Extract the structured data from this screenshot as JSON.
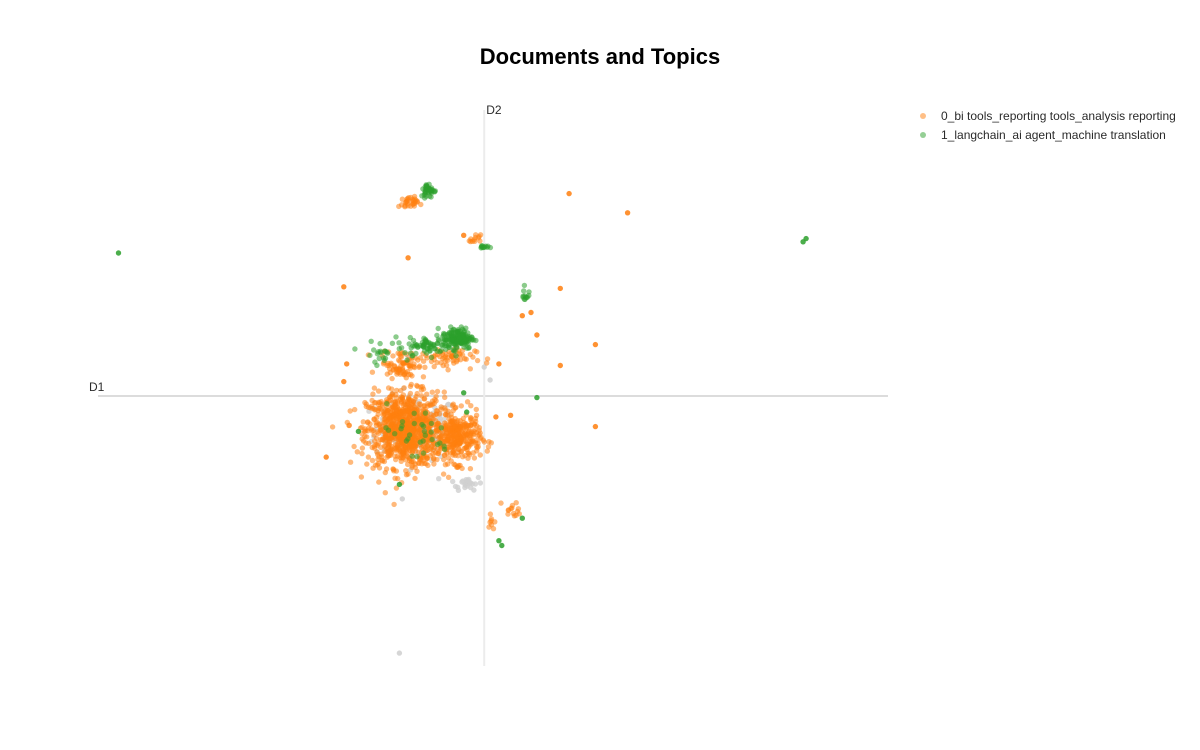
{
  "chart_data": {
    "type": "scatter",
    "title": "Documents and Topics",
    "xlabel": "D1",
    "ylabel": "D2",
    "xlim": [
      -6.6,
      6.9
    ],
    "ylim": [
      -8.4,
      8.9
    ],
    "grid": false,
    "legend_position": "top-right",
    "series": [
      {
        "name": "0_bi tools_reporting tools_analysis reporting",
        "color": "#ff7f0e",
        "clusters": [
          {
            "center": [
              -1.35,
              -1.05
            ],
            "spread": [
              0.6,
              1.05
            ],
            "count": 900
          },
          {
            "center": [
              -0.45,
              -1.3
            ],
            "spread": [
              0.35,
              0.7
            ],
            "count": 300
          },
          {
            "center": [
              -1.4,
              1.0
            ],
            "spread": [
              0.35,
              0.4
            ],
            "count": 80
          },
          {
            "center": [
              -0.65,
              1.2
            ],
            "spread": [
              0.45,
              0.3
            ],
            "count": 60
          },
          {
            "center": [
              -1.3,
              6.0
            ],
            "spread": [
              0.15,
              0.18
            ],
            "count": 30
          },
          {
            "center": [
              -0.15,
              4.85
            ],
            "spread": [
              0.08,
              0.15
            ],
            "count": 12
          },
          {
            "center": [
              0.5,
              -3.55
            ],
            "spread": [
              0.15,
              0.25
            ],
            "count": 14
          },
          {
            "center": [
              0.1,
              -3.9
            ],
            "spread": [
              0.07,
              0.3
            ],
            "count": 8
          }
        ],
        "points": [
          [
            1.45,
            6.3
          ],
          [
            2.45,
            5.7
          ],
          [
            1.3,
            3.35
          ],
          [
            0.9,
            1.9
          ],
          [
            1.9,
            1.6
          ],
          [
            1.3,
            0.95
          ],
          [
            1.9,
            -0.95
          ],
          [
            -2.7,
            -1.9
          ],
          [
            -2.4,
            3.4
          ],
          [
            -2.35,
            1.0
          ],
          [
            -2.4,
            0.45
          ],
          [
            -1.3,
            4.3
          ],
          [
            -0.35,
            5.0
          ],
          [
            0.2,
            -0.65
          ],
          [
            0.25,
            1.0
          ],
          [
            0.45,
            -0.6
          ],
          [
            0.65,
            2.5
          ],
          [
            0.8,
            2.6
          ]
        ]
      },
      {
        "name": "1_langchain_ai agent_machine translation",
        "color": "#2ca02c",
        "clusters": [
          {
            "center": [
              -0.45,
              1.8
            ],
            "spread": [
              0.25,
              0.3
            ],
            "count": 160
          },
          {
            "center": [
              -0.95,
              1.55
            ],
            "spread": [
              0.3,
              0.25
            ],
            "count": 60
          },
          {
            "center": [
              -0.95,
              6.4
            ],
            "spread": [
              0.12,
              0.2
            ],
            "count": 40
          },
          {
            "center": [
              0.0,
              4.65
            ],
            "spread": [
              0.07,
              0.07
            ],
            "count": 12
          },
          {
            "center": [
              0.7,
              3.1
            ],
            "spread": [
              0.05,
              0.25
            ],
            "count": 12
          },
          {
            "center": [
              -1.7,
              1.4
            ],
            "spread": [
              0.4,
              0.3
            ],
            "count": 25
          },
          {
            "center": [
              -1.2,
              -1.2
            ],
            "spread": [
              0.6,
              0.8
            ],
            "count": 30
          }
        ],
        "points": [
          [
            -6.25,
            4.45
          ],
          [
            5.5,
            4.9
          ],
          [
            5.45,
            4.8
          ],
          [
            0.9,
            -0.05
          ],
          [
            0.25,
            -4.5
          ],
          [
            0.3,
            -4.65
          ],
          [
            0.65,
            -3.8
          ],
          [
            -0.35,
            0.1
          ],
          [
            -0.3,
            -0.5
          ],
          [
            -2.15,
            -1.1
          ],
          [
            -1.45,
            -2.75
          ]
        ]
      },
      {
        "name": "",
        "color": "#cfcfcf",
        "clusters": [
          {
            "center": [
              -1.15,
              -1.0
            ],
            "spread": [
              0.65,
              0.9
            ],
            "count": 160
          },
          {
            "center": [
              -0.3,
              -2.7
            ],
            "spread": [
              0.25,
              0.2
            ],
            "count": 25
          }
        ],
        "points": [
          [
            -1.45,
            -8.0
          ],
          [
            -1.4,
            -3.2
          ],
          [
            -1.3,
            1.2
          ],
          [
            0.1,
            0.5
          ],
          [
            0.0,
            0.9
          ]
        ]
      }
    ]
  }
}
